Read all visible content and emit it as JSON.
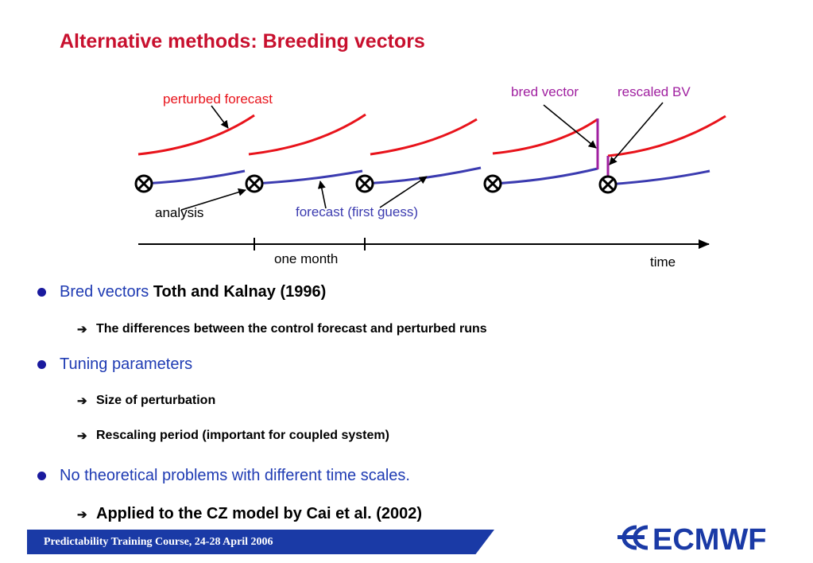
{
  "title": "Alternative methods: Breeding vectors",
  "diagram": {
    "labels": {
      "perturbed_forecast": "perturbed forecast",
      "bred_vector": "bred vector",
      "rescaled_bv": "rescaled BV",
      "analysis": "analysis",
      "forecast_first_guess": "forecast (first guess)",
      "one_month": "one month",
      "time": "time"
    },
    "colors": {
      "perturbed": "#e8131b",
      "control": "#3b3bb0",
      "bred": "#a020a0",
      "axis": "#000000"
    }
  },
  "bullets": [
    {
      "lead": "Bred vectors",
      "bold": "Toth and Kalnay (1996)",
      "sub": [
        "The differences between the control forecast and perturbed runs"
      ]
    },
    {
      "lead": "Tuning parameters",
      "sub": [
        "Size of perturbation",
        "Rescaling period (important for coupled system)"
      ]
    },
    {
      "lead": "No theoretical problems with different time scales.",
      "sub": [
        "Applied to the CZ model by Cai et al. (2002)"
      ]
    }
  ],
  "footer": {
    "text": "Predictability Training Course, 24-28 April 2006"
  },
  "logo": {
    "text": "ECMWF",
    "color": "#1a3aa6"
  }
}
